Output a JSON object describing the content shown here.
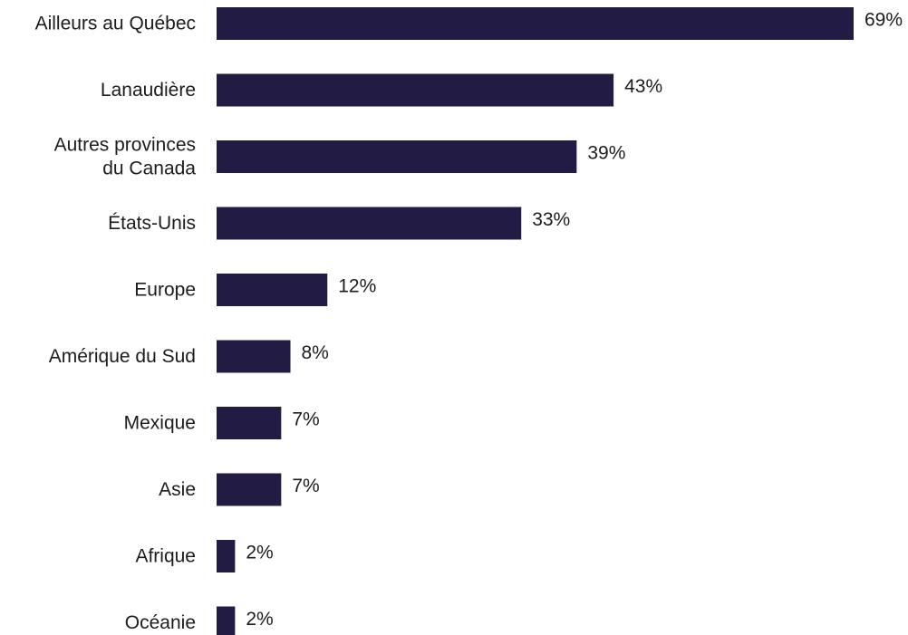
{
  "chart_data": {
    "type": "bar",
    "orientation": "horizontal",
    "categories": [
      [
        "Ailleurs au Québec"
      ],
      [
        "Lanaudière"
      ],
      [
        "Autres provinces",
        "du Canada"
      ],
      [
        "États-Unis"
      ],
      [
        "Europe"
      ],
      [
        "Amérique du Sud"
      ],
      [
        "Mexique"
      ],
      [
        "Asie"
      ],
      [
        "Afrique"
      ],
      [
        "Océanie"
      ]
    ],
    "values": [
      69,
      43,
      39,
      33,
      12,
      8,
      7,
      7,
      2,
      2
    ],
    "value_labels": [
      "69%",
      "43%",
      "39%",
      "33%",
      "12%",
      "8%",
      "7%",
      "7%",
      "2%",
      "2%"
    ],
    "xlim": [
      0,
      69
    ],
    "grid": false,
    "legend": "none",
    "bar_color": "#221c45"
  }
}
